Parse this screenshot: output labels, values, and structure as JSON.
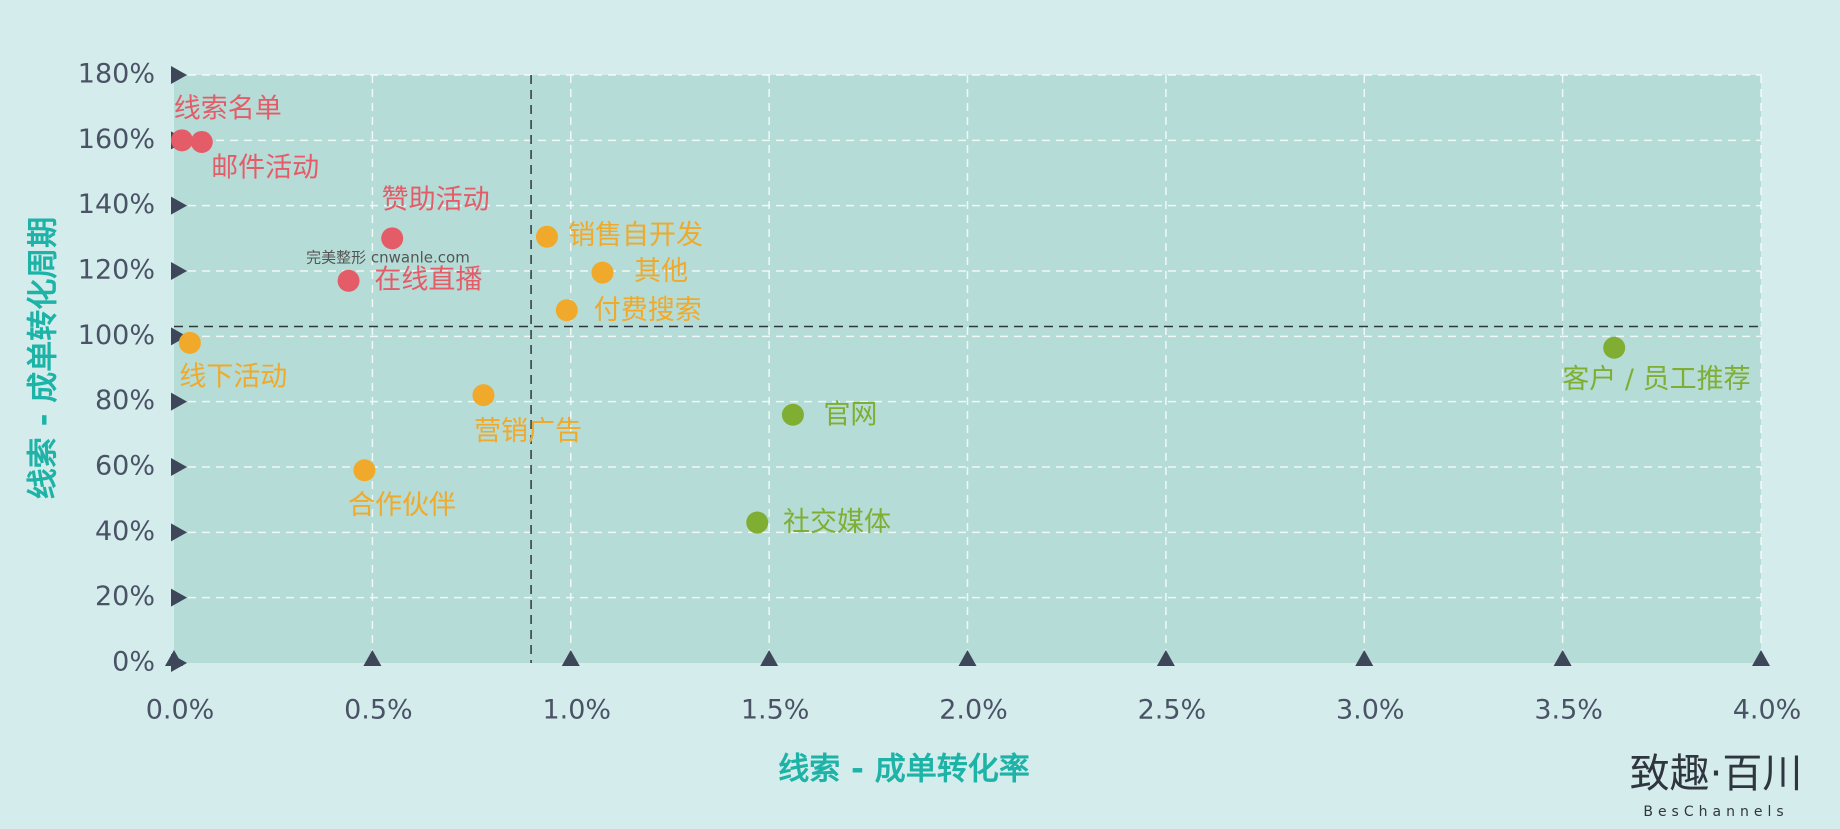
{
  "chart_data": {
    "type": "scatter",
    "x_label": "线索 - 成单转化率",
    "y_label": "线索 - 成单转化周期",
    "xlim": [
      0,
      4.0
    ],
    "ylim": [
      0,
      180
    ],
    "xticks": [
      {
        "value": 0,
        "label": "0.0%"
      },
      {
        "value": 0.5,
        "label": "0.5%"
      },
      {
        "value": 1.0,
        "label": "1.0%"
      },
      {
        "value": 1.5,
        "label": "1.5%"
      },
      {
        "value": 2.0,
        "label": "2.0%"
      },
      {
        "value": 2.5,
        "label": "2.5%"
      },
      {
        "value": 3.0,
        "label": "3.0%"
      },
      {
        "value": 3.5,
        "label": "3.5%"
      },
      {
        "value": 4.0,
        "label": "4.0%"
      }
    ],
    "yticks": [
      {
        "value": 0,
        "label": "0%"
      },
      {
        "value": 20,
        "label": "20%"
      },
      {
        "value": 40,
        "label": "40%"
      },
      {
        "value": 60,
        "label": "60%"
      },
      {
        "value": 80,
        "label": "80%"
      },
      {
        "value": 100,
        "label": "100%"
      },
      {
        "value": 120,
        "label": "120%"
      },
      {
        "value": 140,
        "label": "140%"
      },
      {
        "value": 160,
        "label": "160%"
      },
      {
        "value": 180,
        "label": "180%"
      }
    ],
    "grid": true,
    "ref_x": 0.9,
    "ref_y": 103,
    "series": [
      {
        "color": "#e35c68",
        "labels": [
          "线索名单",
          "邮件活动",
          "赞助活动",
          "在线直播"
        ],
        "x": [
          0.02,
          0.07,
          0.55,
          0.44
        ],
        "values": [
          160,
          159.5,
          130,
          117
        ]
      },
      {
        "color": "#f0a92a",
        "labels": [
          "线下活动",
          "销售自开发",
          "其他",
          "付费搜索",
          "营销广告",
          "合作伙伴"
        ],
        "x": [
          0.04,
          0.94,
          1.08,
          0.99,
          0.78,
          0.48
        ],
        "values": [
          98,
          130.5,
          119.5,
          108,
          82,
          59
        ]
      },
      {
        "color": "#7fae33",
        "labels": [
          "官网",
          "社交媒体",
          "客户 / 员工推荐"
        ],
        "x": [
          1.56,
          1.47,
          3.63
        ],
        "values": [
          76,
          43,
          96.5
        ]
      }
    ],
    "watermark": "完美整形 cnwanle.com",
    "logo": "致趣·百川",
    "logo_sub": "BesChannels"
  }
}
